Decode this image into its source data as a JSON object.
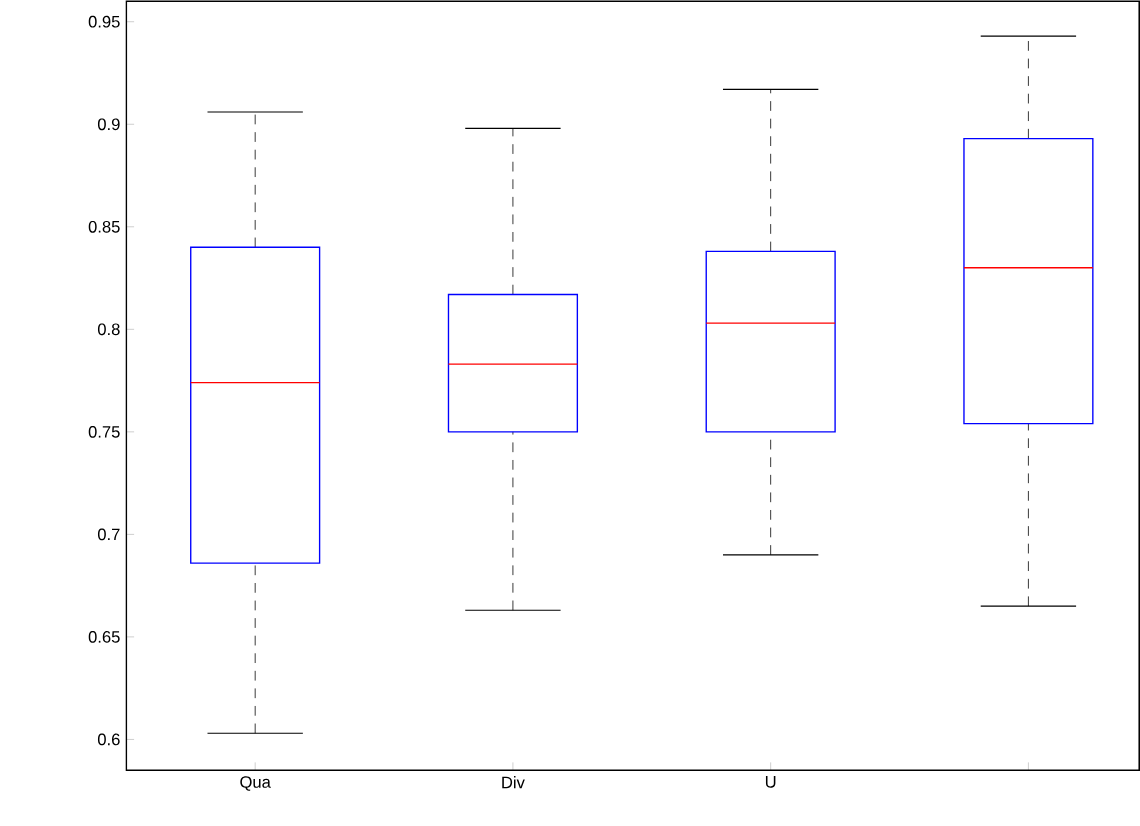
{
  "chart_data": {
    "type": "box",
    "categories": [
      "Qua",
      "Div",
      "U",
      null
    ],
    "boxes": [
      {
        "low": 0.603,
        "q1": 0.686,
        "median": 0.774,
        "q3": 0.84,
        "high": 0.906
      },
      {
        "low": 0.663,
        "q1": 0.75,
        "median": 0.783,
        "q3": 0.817,
        "high": 0.898
      },
      {
        "low": 0.69,
        "q1": 0.75,
        "median": 0.803,
        "q3": 0.838,
        "high": 0.917
      },
      {
        "low": 0.665,
        "q1": 0.754,
        "median": 0.83,
        "q3": 0.893,
        "high": 0.943
      }
    ],
    "color": "#0000ff",
    "ylim": [
      0.585,
      0.96
    ],
    "yticks": [
      0.6,
      0.65,
      0.7,
      0.75,
      0.8,
      0.85,
      0.9,
      0.95
    ],
    "grid": false
  }
}
